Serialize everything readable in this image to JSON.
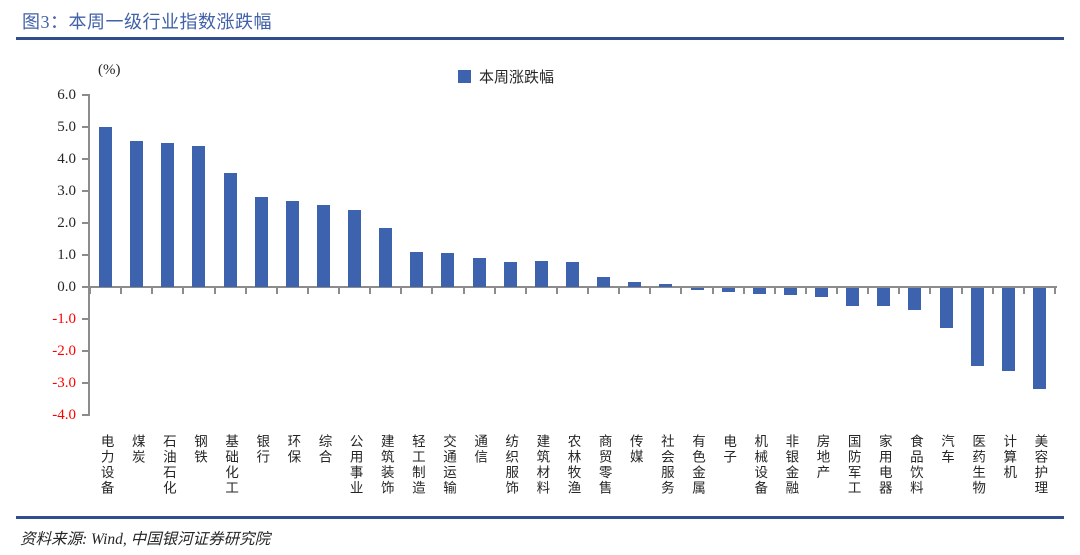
{
  "figure": {
    "title": "图3：本周一级行业指数涨跌幅",
    "source_note": "资料来源: Wind, 中国银河证券研究院"
  },
  "chart_data": {
    "type": "bar",
    "title": "本周一级行业指数涨跌幅",
    "unit_label": "(%)",
    "legend": [
      {
        "name": "本周涨跌幅",
        "color": "#3E63AE"
      }
    ],
    "legend_position": "top-center",
    "grid": false,
    "categories": [
      "电力设备",
      "煤炭",
      "石油石化",
      "钢铁",
      "基础化工",
      "银行",
      "环保",
      "综合",
      "公用事业",
      "建筑装饰",
      "轻工制造",
      "交通运输",
      "通信",
      "纺织服饰",
      "建筑材料",
      "农林牧渔",
      "商贸零售",
      "传媒",
      "社会服务",
      "有色金属",
      "电子",
      "机械设备",
      "非银金融",
      "房地产",
      "国防军工",
      "家用电器",
      "食品饮料",
      "汽车",
      "医药生物",
      "计算机",
      "美容护理"
    ],
    "values": [
      5.0,
      4.55,
      4.5,
      4.4,
      3.55,
      2.8,
      2.7,
      2.55,
      2.4,
      1.85,
      1.1,
      1.05,
      0.9,
      0.78,
      0.8,
      0.78,
      0.3,
      0.15,
      0.1,
      -0.05,
      -0.12,
      -0.18,
      -0.22,
      -0.27,
      -0.55,
      -0.55,
      -0.68,
      -1.25,
      -2.45,
      -2.6,
      -3.15
    ],
    "ylim": [
      -4.0,
      6.0
    ],
    "ytick_step": 1.0,
    "ytick_labels": [
      "6.0",
      "5.0",
      "4.0",
      "3.0",
      "2.0",
      "1.0",
      "0.0",
      "-1.0",
      "-2.0",
      "-3.0",
      "-4.0"
    ],
    "colors": {
      "bar": "#3E63AE",
      "axis": "#8C8C8C",
      "title_text": "#4161A8",
      "rule": "#2F4D8F",
      "positive_tick_text": "#262626",
      "negative_tick_text": "#FF0000"
    }
  }
}
